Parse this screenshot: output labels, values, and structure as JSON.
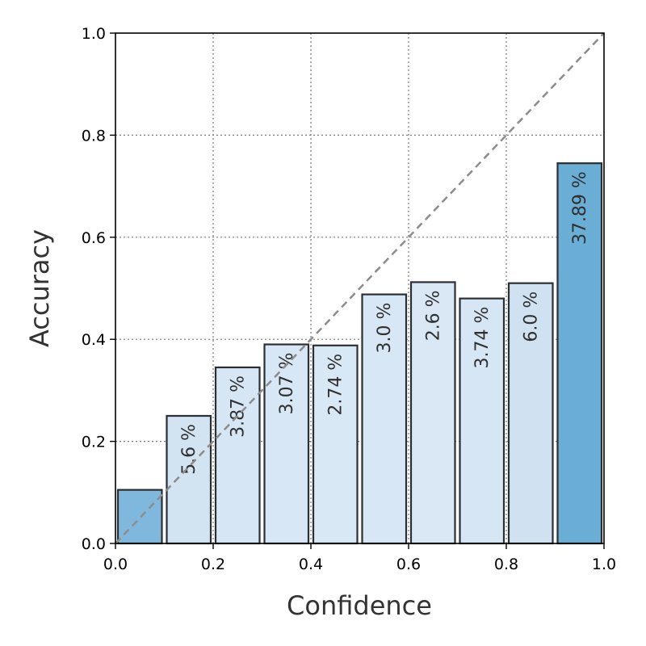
{
  "chart_data": {
    "type": "bar",
    "title": "",
    "xlabel": "Confidence",
    "ylabel": "Accuracy",
    "xlim": [
      0.0,
      1.0
    ],
    "ylim": [
      0.0,
      1.0
    ],
    "grid": true,
    "x_ticks": [
      "0.0",
      "0.2",
      "0.4",
      "0.6",
      "0.8",
      "1.0"
    ],
    "y_ticks": [
      "0.0",
      "0.2",
      "0.4",
      "0.6",
      "0.8",
      "1.0"
    ],
    "bins": [
      {
        "x_start": 0.0,
        "x_end": 0.1,
        "accuracy": 0.105,
        "label": "",
        "color": "#7fb8dc"
      },
      {
        "x_start": 0.1,
        "x_end": 0.2,
        "accuracy": 0.25,
        "label": "5.6 %",
        "color": "#d2e3f2"
      },
      {
        "x_start": 0.2,
        "x_end": 0.3,
        "accuracy": 0.345,
        "label": "3.87 %",
        "color": "#d6e6f4"
      },
      {
        "x_start": 0.3,
        "x_end": 0.4,
        "accuracy": 0.39,
        "label": "3.07 %",
        "color": "#d8e7f5"
      },
      {
        "x_start": 0.4,
        "x_end": 0.5,
        "accuracy": 0.388,
        "label": "2.74 %",
        "color": "#d9e8f5"
      },
      {
        "x_start": 0.5,
        "x_end": 0.6,
        "accuracy": 0.488,
        "label": "3.0 %",
        "color": "#d8e7f5"
      },
      {
        "x_start": 0.6,
        "x_end": 0.7,
        "accuracy": 0.512,
        "label": "2.6 %",
        "color": "#dae8f5"
      },
      {
        "x_start": 0.7,
        "x_end": 0.8,
        "accuracy": 0.48,
        "label": "3.74 %",
        "color": "#d6e6f4"
      },
      {
        "x_start": 0.8,
        "x_end": 0.9,
        "accuracy": 0.51,
        "label": "6.0 %",
        "color": "#d0e1f2"
      },
      {
        "x_start": 0.9,
        "x_end": 1.0,
        "accuracy": 0.745,
        "label": "37.89 %",
        "color": "#6aaed6"
      }
    ],
    "reference_line": {
      "from": [
        0.0,
        0.0
      ],
      "to": [
        1.0,
        1.0
      ],
      "style": "dashed",
      "color": "#8c8c8c"
    }
  }
}
